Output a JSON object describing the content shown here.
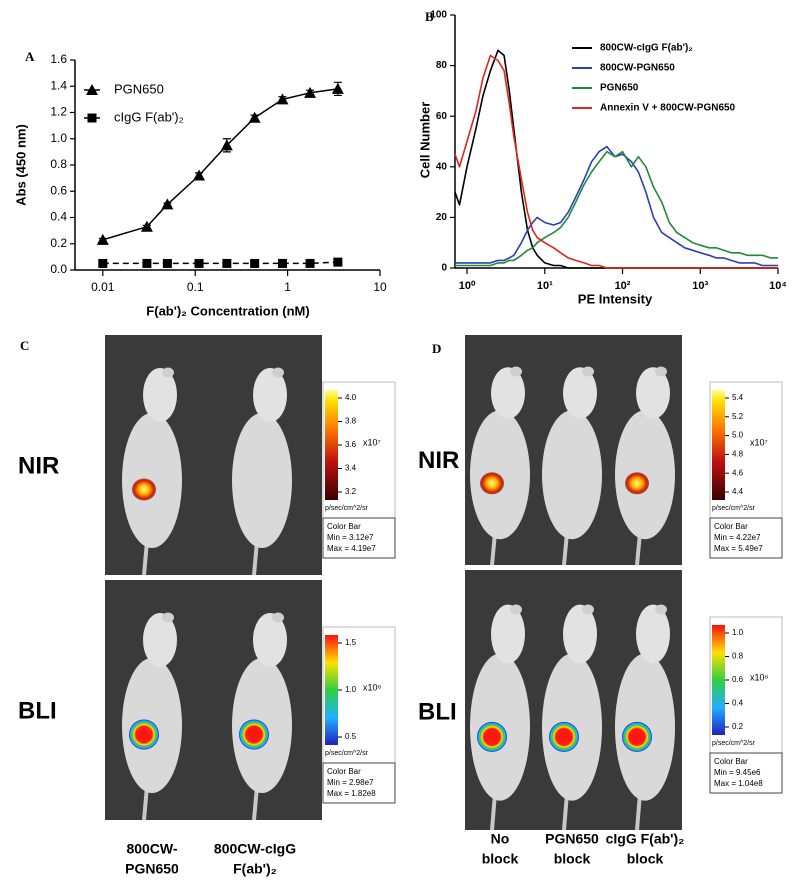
{
  "chart_data": [
    {
      "type": "line",
      "label": "A",
      "xlabel": "F(ab')₂ Concentration (nM)",
      "ylabel": "Abs (450 nm)",
      "xscale": "log",
      "xlim": [
        0.005,
        10
      ],
      "xticks": [
        0.01,
        0.1,
        1,
        10
      ],
      "ylim": [
        0,
        1.6
      ],
      "yticks": [
        {
          "value": 0,
          "label": "0.0"
        },
        0.2,
        0.4,
        0.6,
        0.8,
        {
          "value": 1,
          "label": "1.0"
        },
        1.2,
        1.4,
        1.6
      ],
      "x": [
        0.01,
        0.03,
        0.05,
        0.11,
        0.22,
        0.44,
        0.88,
        1.75,
        3.5
      ],
      "series": [
        {
          "name": "PGN650",
          "color": "#000000",
          "marker": "triangle",
          "linestyle": "solid",
          "values": [
            0.23,
            0.33,
            0.5,
            0.72,
            0.95,
            1.16,
            1.3,
            1.35,
            1.38
          ],
          "errors": [
            0.01,
            0.01,
            0.01,
            0.02,
            0.05,
            0.02,
            0.02,
            0.02,
            0.05
          ]
        },
        {
          "name": "cIgG F(ab')₂",
          "color": "#000000",
          "marker": "square",
          "linestyle": "dashed",
          "values": [
            0.05,
            0.05,
            0.05,
            0.05,
            0.05,
            0.05,
            0.05,
            0.05,
            0.06
          ],
          "errors": [
            0.005,
            0.005,
            0.005,
            0.005,
            0.005,
            0.005,
            0.005,
            0.005,
            0.005
          ]
        }
      ]
    },
    {
      "type": "line",
      "label": "B",
      "xlabel": "PE Intensity",
      "ylabel": "Cell Number",
      "xscale": "log",
      "xlim": [
        0.7,
        10000
      ],
      "xticks": [
        {
          "value": 1,
          "label": "10⁰"
        },
        {
          "value": 10,
          "label": "10¹"
        },
        {
          "value": 100,
          "label": "10²"
        },
        {
          "value": 1000,
          "label": "10³"
        },
        {
          "value": 10000,
          "label": "10⁴"
        }
      ],
      "ylim": [
        0,
        100
      ],
      "yticks": [
        0,
        20,
        40,
        60,
        80,
        100
      ],
      "x": [
        0.7,
        0.8,
        1,
        1.3,
        1.6,
        2,
        2.5,
        3,
        3.5,
        4,
        5,
        6,
        7,
        8,
        10,
        13,
        16,
        20,
        25,
        32,
        40,
        50,
        63,
        80,
        100,
        130,
        160,
        200,
        250,
        320,
        400,
        500,
        630,
        800,
        1000,
        1300,
        1600,
        2000,
        2500,
        3200,
        4000,
        5000,
        6300,
        8000,
        10000
      ],
      "series": [
        {
          "name": "800CW-cIgG F(ab')₂",
          "color": "#000000",
          "values": [
            30,
            25,
            40,
            55,
            68,
            78,
            86,
            84,
            70,
            55,
            30,
            15,
            8,
            5,
            2,
            1,
            1,
            0,
            0,
            0,
            0,
            0,
            0,
            0,
            0,
            0,
            0,
            0,
            0,
            0,
            0,
            0,
            0,
            0,
            0,
            0,
            0,
            0,
            0,
            0,
            0,
            0,
            0,
            0,
            0
          ]
        },
        {
          "name": "800CW-PGN650",
          "color": "#2b3fb5",
          "values": [
            2,
            2,
            2,
            2,
            2,
            2,
            3,
            3,
            4,
            5,
            10,
            15,
            18,
            20,
            18,
            17,
            18,
            22,
            28,
            35,
            42,
            46,
            48,
            44,
            45,
            42,
            38,
            30,
            20,
            14,
            12,
            10,
            8,
            7,
            6,
            5,
            4,
            4,
            3,
            2,
            2,
            2,
            1,
            1,
            1
          ]
        },
        {
          "name": "PGN650",
          "color": "#1e8a3a",
          "values": [
            1,
            1,
            1,
            1,
            1,
            1,
            2,
            2,
            3,
            3,
            5,
            7,
            8,
            10,
            12,
            14,
            16,
            20,
            26,
            33,
            38,
            42,
            46,
            44,
            46,
            40,
            44,
            40,
            32,
            26,
            18,
            14,
            12,
            10,
            9,
            8,
            8,
            7,
            6,
            6,
            5,
            5,
            5,
            4,
            4
          ]
        },
        {
          "name": "Annexin V + 800CW-PGN650",
          "color": "#e0261c",
          "values": [
            45,
            40,
            50,
            62,
            75,
            84,
            82,
            78,
            65,
            52,
            35,
            22,
            15,
            12,
            10,
            8,
            6,
            4,
            3,
            2,
            1,
            1,
            0,
            0,
            0,
            0,
            0,
            0,
            0,
            0,
            0,
            0,
            0,
            0,
            0,
            0,
            0,
            0,
            0,
            0,
            0,
            0,
            0,
            0,
            0
          ]
        }
      ]
    }
  ],
  "panels": [
    {
      "label": "C",
      "rows": [
        {
          "label": "NIR",
          "colorbar": {
            "ticks": [
              "4.0",
              "3.8",
              "3.6",
              "3.4",
              "3.2"
            ],
            "exponent": "x10⁷",
            "unit": "p/sec/cm^2/sr",
            "box": [
              "Color Bar",
              "Min = 3.12e7",
              "Max = 4.19e7"
            ]
          }
        },
        {
          "label": "BLI",
          "colorbar": {
            "ticks": [
              "1.5",
              "1.0",
              "0.5"
            ],
            "exponent": "x10⁸",
            "unit": "p/sec/cm^2/sr",
            "box": [
              "Color Bar",
              "Min = 2.98e7",
              "Max = 1.82e8"
            ]
          }
        }
      ],
      "columns": [
        [
          "800CW-",
          "PGN650"
        ],
        [
          "800CW-cIgG",
          "F(ab')₂"
        ]
      ]
    },
    {
      "label": "D",
      "rows": [
        {
          "label": "NIR",
          "colorbar": {
            "ticks": [
              "5.4",
              "5.2",
              "5.0",
              "4.8",
              "4.6",
              "4.4"
            ],
            "exponent": "x10⁷",
            "unit": "p/sec/cm^2/sr",
            "box": [
              "Color Bar",
              "Min = 4.22e7",
              "Max = 5.49e7"
            ]
          }
        },
        {
          "label": "BLI",
          "colorbar": {
            "ticks": [
              "1.0",
              "0.8",
              "0.6",
              "0.4",
              "0.2"
            ],
            "exponent": "x10⁸",
            "unit": "p/sec/cm^2/sr",
            "box": [
              "Color Bar",
              "Min = 9.45e6",
              "Max = 1.04e8"
            ]
          }
        }
      ],
      "columns": [
        [
          "No",
          "block"
        ],
        [
          "PGN650",
          "block"
        ],
        [
          "cIgG F(ab')₂",
          "block"
        ]
      ]
    }
  ]
}
